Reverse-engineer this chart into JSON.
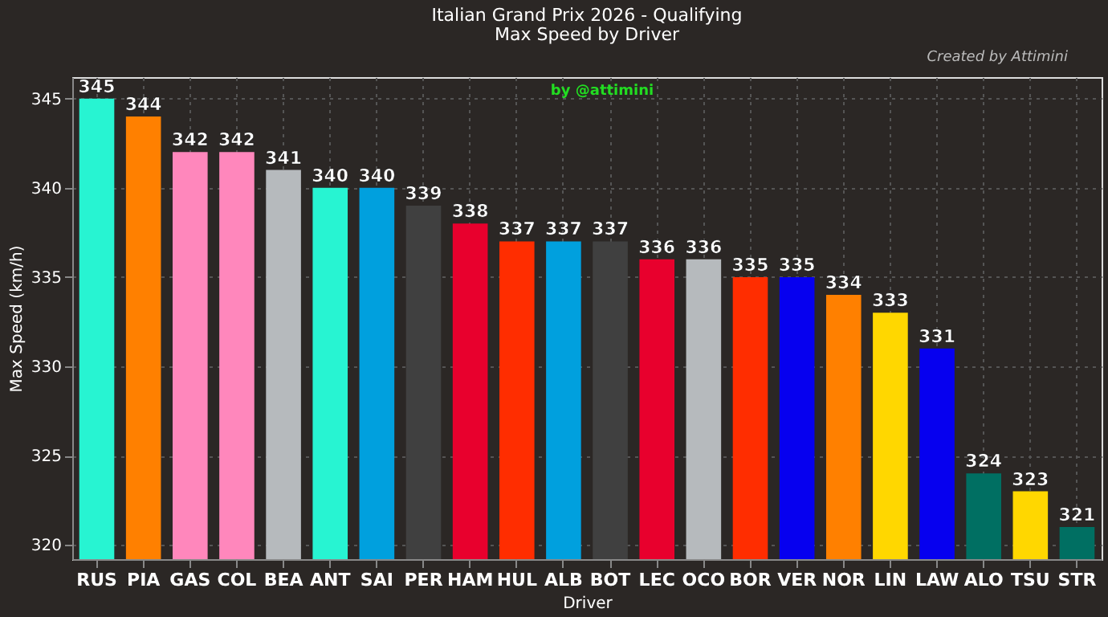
{
  "chart_data": {
    "type": "bar",
    "title": "Italian Grand Prix 2026 - Qualifying",
    "subtitle": "Max Speed by Driver",
    "xlabel": "Driver",
    "ylabel": "Max Speed (km/h)",
    "categories": [
      "RUS",
      "PIA",
      "GAS",
      "COL",
      "BEA",
      "ANT",
      "SAI",
      "PER",
      "HAM",
      "HUL",
      "ALB",
      "BOT",
      "LEC",
      "OCO",
      "BOR",
      "VER",
      "NOR",
      "LIN",
      "LAW",
      "ALO",
      "TSU",
      "STR"
    ],
    "values": [
      345,
      344,
      342,
      342,
      341,
      340,
      340,
      339,
      338,
      337,
      337,
      337,
      336,
      336,
      335,
      335,
      334,
      333,
      331,
      324,
      323,
      321
    ],
    "colors": [
      "#27f4d2",
      "#ff8000",
      "#ff87bc",
      "#ff87bc",
      "#b6babd",
      "#27f4d2",
      "#00a0de",
      "#404040",
      "#e8002d",
      "#ff2d00",
      "#00a0de",
      "#404040",
      "#e8002d",
      "#b6babd",
      "#ff2d00",
      "#0600ef",
      "#ff8000",
      "#ffd700",
      "#0600ef",
      "#006f62",
      "#ffd700",
      "#006f62"
    ],
    "ylim": [
      319.2,
      346.2
    ],
    "yticks": [
      320,
      325,
      330,
      335,
      340,
      345
    ],
    "grid": true,
    "data_labels": true,
    "annotations": [
      "by @attimini",
      "Created by Attimini"
    ]
  }
}
